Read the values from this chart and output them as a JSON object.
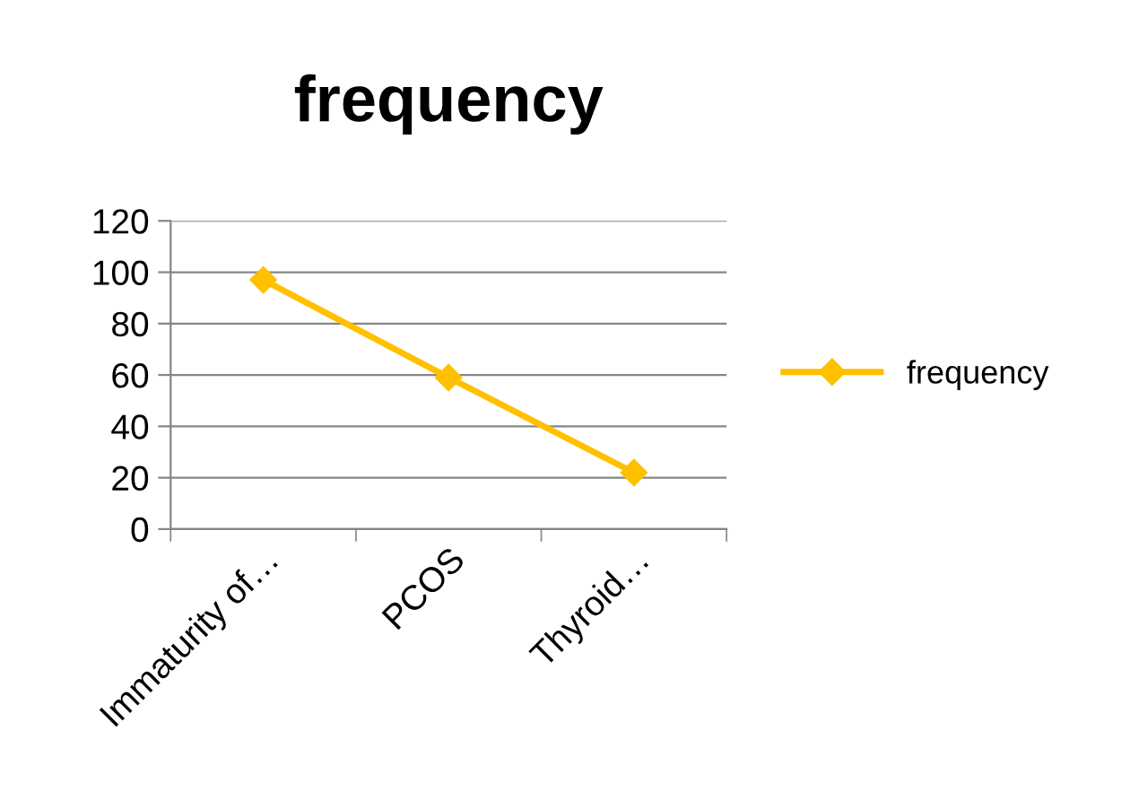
{
  "chart_data": {
    "type": "line",
    "title": "frequency",
    "categories": [
      "Immaturity of…",
      "PCOS",
      "Thyroid…"
    ],
    "series": [
      {
        "name": "frequency",
        "color": "#ffc000",
        "values": [
          97,
          59,
          22
        ]
      }
    ],
    "ylim": [
      0,
      120
    ],
    "yticks": [
      0,
      20,
      40,
      60,
      80,
      100,
      120
    ],
    "grid": "y",
    "legend": "right",
    "marker": "diamond",
    "line_style": "solid"
  }
}
